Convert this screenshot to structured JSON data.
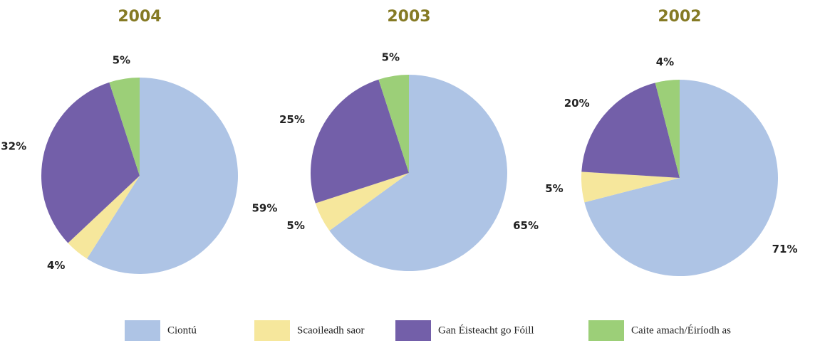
{
  "legend": {
    "categories": [
      "Ciontú",
      "Scaoileadh saor",
      "Gan Éisteacht go Fóill",
      "Caite amach/Éiríodh as"
    ],
    "colors": [
      "#aec4e5",
      "#f6e79c",
      "#735fa9",
      "#9ccf78"
    ]
  },
  "chart_data": [
    {
      "type": "pie",
      "title": "2004",
      "values": [
        59,
        4,
        32,
        5
      ],
      "value_labels": [
        "59%",
        "4%",
        "32%",
        "5%"
      ]
    },
    {
      "type": "pie",
      "title": "2003",
      "values": [
        65,
        5,
        25,
        5
      ],
      "value_labels": [
        "65%",
        "5%",
        "25%",
        "5%"
      ]
    },
    {
      "type": "pie",
      "title": "2002",
      "values": [
        71,
        5,
        20,
        4
      ],
      "value_labels": [
        "71%",
        "5%",
        "20%",
        "4%"
      ]
    }
  ]
}
